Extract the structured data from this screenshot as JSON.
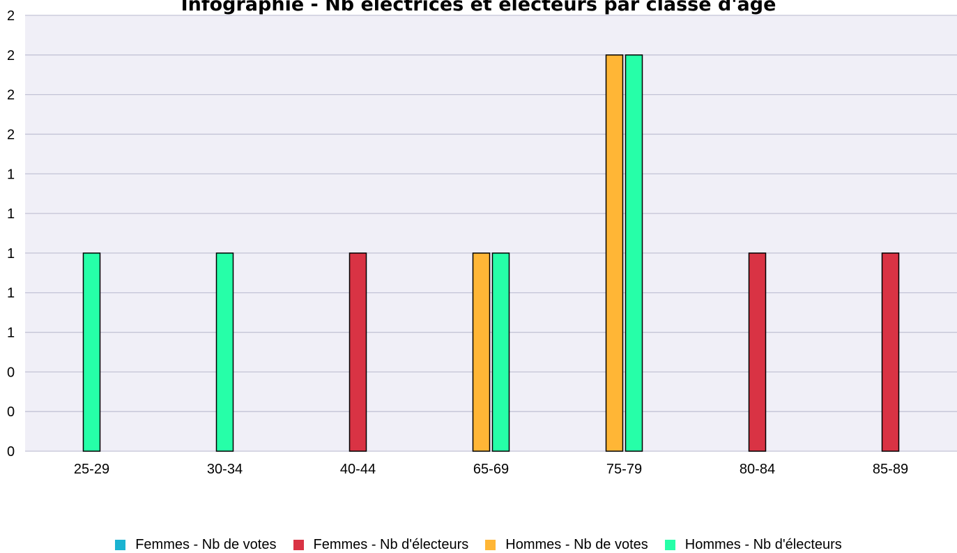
{
  "chart_data": {
    "type": "bar",
    "title": "Infographie - Nb électrices et électeurs par classe d'âge",
    "xlabel": "",
    "ylabel": "",
    "categories": [
      "25-29",
      "30-34",
      "40-44",
      "65-69",
      "75-79",
      "80-84",
      "85-89"
    ],
    "series": [
      {
        "name": "Femmes - Nb de votes",
        "color": "#1ab3d1",
        "values": [
          0,
          0,
          0,
          0,
          0,
          0,
          0
        ]
      },
      {
        "name": "Femmes - Nb d'électeurs",
        "color": "#d93344",
        "values": [
          0,
          0,
          1,
          0,
          0,
          1,
          1
        ]
      },
      {
        "name": "Hommes - Nb de votes",
        "color": "#ffb636",
        "values": [
          0,
          0,
          0,
          1,
          2,
          0,
          0
        ]
      },
      {
        "name": "Hommes - Nb d'électeurs",
        "color": "#26ffa8",
        "values": [
          1,
          1,
          0,
          1,
          2,
          0,
          0
        ]
      }
    ],
    "ylim": [
      0,
      2.2
    ],
    "yticks": [
      0,
      0.2,
      0.4,
      0.6,
      0.8,
      1.0,
      1.2,
      1.4,
      1.6,
      1.8,
      2.0,
      2.2
    ],
    "ytick_labels": [
      "0",
      "0",
      "0",
      "1",
      "1",
      "1",
      "1",
      "1",
      "2",
      "2",
      "2",
      "2"
    ],
    "grid": true,
    "legend_position": "bottom"
  }
}
